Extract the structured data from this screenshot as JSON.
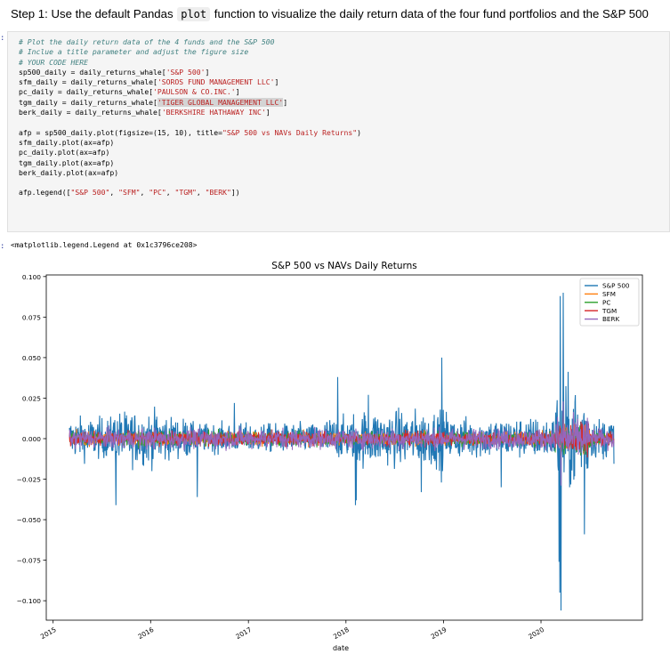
{
  "heading": {
    "prefix": "Step 1: Use the default Pandas ",
    "code": "plot",
    "suffix": " function to visualize the daily return data of the four fund portfolios and the S&P 500"
  },
  "cell": {
    "prompt": ":",
    "lines": [
      [
        {
          "t": "# Plot the daily return data of the 4 funds and the S&P 500",
          "c": "cm"
        }
      ],
      [
        {
          "t": "# Inclue a title parameter and adjust the figure size",
          "c": "cm"
        }
      ],
      [
        {
          "t": "# YOUR CODE HERE",
          "c": "cm"
        }
      ],
      [
        {
          "t": "sp500_daily = daily_returns_whale["
        },
        {
          "t": "'S&P 500'",
          "c": "st"
        },
        {
          "t": "]"
        }
      ],
      [
        {
          "t": "sfm_daily = daily_returns_whale["
        },
        {
          "t": "'SOROS FUND MANAGEMENT LLC'",
          "c": "st"
        },
        {
          "t": "]"
        }
      ],
      [
        {
          "t": "pc_daily = daily_returns_whale["
        },
        {
          "t": "'PAULSON & CO.INC.'",
          "c": "st"
        },
        {
          "t": "]"
        }
      ],
      [
        {
          "t": "tgm_daily = daily_returns_whale["
        },
        {
          "t": "'TIGER GLOBAL MANAGEMENT LLC'",
          "c": "st hl"
        },
        {
          "t": "]"
        }
      ],
      [
        {
          "t": "berk_daily = daily_returns_whale["
        },
        {
          "t": "'BERKSHIRE HATHAWAY INC'",
          "c": "st"
        },
        {
          "t": "]"
        }
      ],
      [
        {
          "t": ""
        }
      ],
      [
        {
          "t": "afp = sp500_daily.plot(figsize=(15, 10), title="
        },
        {
          "t": "\"S&P 500 vs NAVs Daily Returns\"",
          "c": "st"
        },
        {
          "t": ")"
        }
      ],
      [
        {
          "t": "sfm_daily.plot(ax=afp)"
        }
      ],
      [
        {
          "t": "pc_daily.plot(ax=afp)"
        }
      ],
      [
        {
          "t": "tgm_daily.plot(ax=afp)"
        }
      ],
      [
        {
          "t": "berk_daily.plot(ax=afp)"
        }
      ],
      [
        {
          "t": ""
        }
      ],
      [
        {
          "t": "afp.legend(["
        },
        {
          "t": "\"S&P 500\"",
          "c": "st"
        },
        {
          "t": ", "
        },
        {
          "t": "\"SFM\"",
          "c": "st"
        },
        {
          "t": ", "
        },
        {
          "t": "\"PC\"",
          "c": "st"
        },
        {
          "t": ", "
        },
        {
          "t": "\"TGM\"",
          "c": "st"
        },
        {
          "t": ", "
        },
        {
          "t": "\"BERK\"",
          "c": "st"
        },
        {
          "t": "])"
        }
      ]
    ]
  },
  "output": {
    "prompt": ":",
    "text": "<matplotlib.legend.Legend at 0x1c3796ce208>"
  },
  "chart_data": {
    "type": "line",
    "title": "S&P 500 vs NAVs Daily Returns",
    "xlabel": "date",
    "ylabel": "",
    "x_range": [
      "2015-03-03",
      "2020-09-30"
    ],
    "ylim": [
      -0.112,
      0.101
    ],
    "yticks": [
      0.1,
      0.075,
      0.05,
      0.025,
      0.0,
      -0.025,
      -0.05,
      -0.075,
      -0.1
    ],
    "ytick_labels": [
      "0.100",
      "0.075",
      "0.050",
      "0.025",
      "0.000",
      "−0.025",
      "−0.050",
      "−0.075",
      "−0.100"
    ],
    "xticks": [
      "2015",
      "2016",
      "2017",
      "2018",
      "2019",
      "2020"
    ],
    "legend_position": "top-right",
    "grid": false,
    "series": [
      {
        "name": "S&P 500",
        "color": "#1f77b4",
        "amplitude": 0.012,
        "spikes": [
          [
            "2015-08-24",
            -0.041
          ],
          [
            "2016-06-24",
            -0.036
          ],
          [
            "2016-11-09",
            0.022
          ],
          [
            "2017-12-01",
            0.038
          ],
          [
            "2018-02-05",
            -0.041
          ],
          [
            "2018-02-08",
            -0.038
          ],
          [
            "2018-03-26",
            0.027
          ],
          [
            "2018-10-10",
            -0.033
          ],
          [
            "2018-12-24",
            -0.027
          ],
          [
            "2018-12-26",
            0.05
          ],
          [
            "2019-08-05",
            -0.03
          ],
          [
            "2020-03-16",
            -0.106
          ],
          [
            "2020-03-12",
            -0.095
          ],
          [
            "2020-03-24",
            0.09
          ],
          [
            "2020-03-13",
            0.088
          ],
          [
            "2020-03-09",
            -0.076
          ],
          [
            "2020-06-11",
            -0.059
          ]
        ]
      },
      {
        "name": "SFM",
        "color": "#ff7f0e",
        "amplitude": 0.004,
        "spikes": [
          [
            "2020-03-16",
            -0.011
          ],
          [
            "2020-03-24",
            0.013
          ]
        ]
      },
      {
        "name": "PC",
        "color": "#2ca02c",
        "amplitude": 0.004,
        "spikes": [
          [
            "2020-03-16",
            -0.017
          ],
          [
            "2020-03-24",
            0.018
          ]
        ]
      },
      {
        "name": "TGM",
        "color": "#d62728",
        "amplitude": 0.004,
        "spikes": [
          [
            "2020-03-16",
            -0.013
          ],
          [
            "2020-03-24",
            0.014
          ]
        ]
      },
      {
        "name": "BERK",
        "color": "#9467bd",
        "amplitude": 0.006,
        "spikes": [
          [
            "2020-03-16",
            -0.029
          ],
          [
            "2020-03-24",
            0.023
          ]
        ]
      }
    ]
  }
}
